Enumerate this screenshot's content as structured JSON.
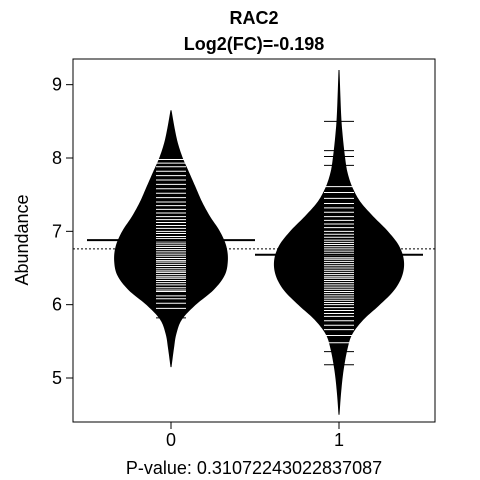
{
  "chart_data": {
    "type": "beanplot",
    "title": "RAC2",
    "subtitle": "Log2(FC)=-0.198",
    "xlabel": "P-value: 0.31072243022837087",
    "ylabel": "Abundance",
    "categories": [
      "0",
      "1"
    ],
    "ylim": [
      4.4,
      9.35
    ],
    "yticks": [
      5,
      6,
      7,
      8,
      9
    ],
    "overall_mean": 6.76,
    "overall_mean_line": "dotted",
    "grid": false,
    "legend": "none",
    "groups": [
      {
        "category": "0",
        "mean": 6.88,
        "range": [
          5.15,
          8.65
        ],
        "density": [
          [
            5.15,
            0.0
          ],
          [
            5.4,
            0.03
          ],
          [
            5.6,
            0.06
          ],
          [
            5.8,
            0.13
          ],
          [
            6.0,
            0.3
          ],
          [
            6.2,
            0.52
          ],
          [
            6.4,
            0.66
          ],
          [
            6.6,
            0.7
          ],
          [
            6.8,
            0.68
          ],
          [
            7.0,
            0.6
          ],
          [
            7.2,
            0.48
          ],
          [
            7.4,
            0.38
          ],
          [
            7.6,
            0.3
          ],
          [
            7.8,
            0.22
          ],
          [
            8.0,
            0.14
          ],
          [
            8.2,
            0.08
          ],
          [
            8.4,
            0.04
          ],
          [
            8.65,
            0.0
          ]
        ],
        "observations": [
          5.82,
          5.95,
          6.02,
          6.08,
          6.12,
          6.18,
          6.2,
          6.23,
          6.27,
          6.3,
          6.33,
          6.36,
          6.38,
          6.41,
          6.44,
          6.46,
          6.49,
          6.52,
          6.55,
          6.58,
          6.6,
          6.63,
          6.66,
          6.69,
          6.72,
          6.75,
          6.78,
          6.81,
          6.84,
          6.87,
          6.9,
          6.93,
          6.97,
          7.0,
          7.04,
          7.08,
          7.12,
          7.16,
          7.2,
          7.25,
          7.3,
          7.35,
          7.4,
          7.46,
          7.52,
          7.58,
          7.64,
          7.7,
          7.76,
          7.82,
          7.88,
          7.93,
          7.98
        ]
      },
      {
        "category": "1",
        "mean": 6.68,
        "range": [
          4.5,
          9.2
        ],
        "density": [
          [
            4.5,
            0.0
          ],
          [
            4.8,
            0.02
          ],
          [
            5.1,
            0.05
          ],
          [
            5.4,
            0.1
          ],
          [
            5.6,
            0.16
          ],
          [
            5.8,
            0.3
          ],
          [
            6.0,
            0.5
          ],
          [
            6.2,
            0.68
          ],
          [
            6.4,
            0.78
          ],
          [
            6.6,
            0.8
          ],
          [
            6.8,
            0.74
          ],
          [
            7.0,
            0.6
          ],
          [
            7.2,
            0.42
          ],
          [
            7.4,
            0.26
          ],
          [
            7.6,
            0.16
          ],
          [
            7.8,
            0.1
          ],
          [
            8.0,
            0.07
          ],
          [
            8.3,
            0.04
          ],
          [
            8.6,
            0.02
          ],
          [
            9.2,
            0.0
          ]
        ],
        "observations": [
          5.18,
          5.36,
          5.48,
          5.58,
          5.66,
          5.72,
          5.78,
          5.84,
          5.88,
          5.92,
          5.96,
          6.0,
          6.03,
          6.06,
          6.09,
          6.12,
          6.15,
          6.18,
          6.21,
          6.24,
          6.27,
          6.3,
          6.33,
          6.36,
          6.38,
          6.41,
          6.44,
          6.47,
          6.5,
          6.53,
          6.56,
          6.59,
          6.62,
          6.64,
          6.67,
          6.7,
          6.73,
          6.76,
          6.79,
          6.82,
          6.85,
          6.88,
          6.92,
          6.96,
          7.0,
          7.05,
          7.1,
          7.15,
          7.2,
          7.26,
          7.32,
          7.38,
          7.45,
          7.53,
          7.61,
          7.9,
          8.02,
          8.1,
          8.5
        ]
      }
    ]
  }
}
